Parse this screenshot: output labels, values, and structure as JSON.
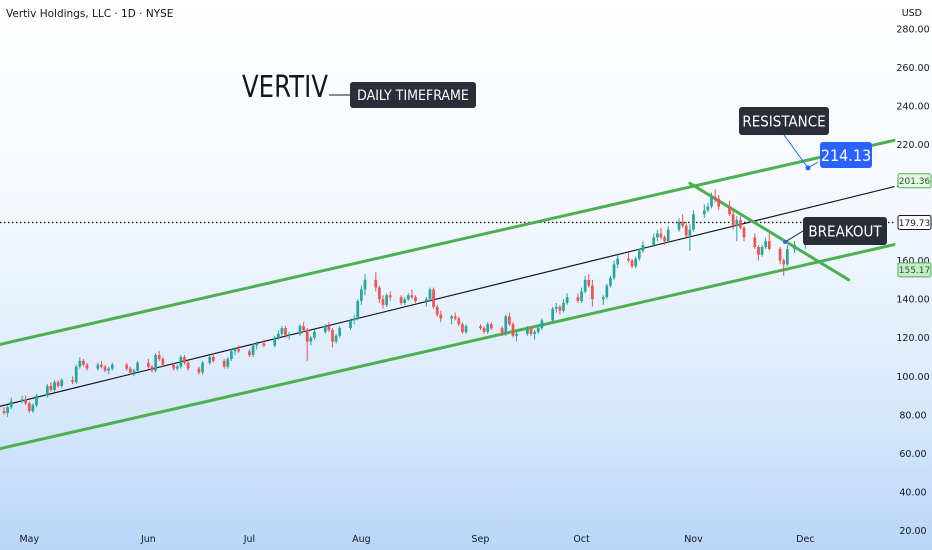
{
  "header": {
    "symbol_title": "Vertiv Holdings, LLC · 1D · NYSE",
    "currency": "USD"
  },
  "chart_data": {
    "type": "candlestick",
    "title": "Vertiv Holdings, LLC · 1D · NYSE",
    "ylim": [
      10,
      295
    ],
    "y_ticks": [
      20,
      40,
      60,
      80,
      100,
      120,
      140,
      160,
      180,
      200,
      220,
      240,
      260,
      280
    ],
    "x_ticks": [
      {
        "label": "May",
        "date": "2024-05-01"
      },
      {
        "label": "Jun",
        "date": "2024-06-03"
      },
      {
        "label": "Jul",
        "date": "2024-07-01"
      },
      {
        "label": "Aug",
        "date": "2024-08-01"
      },
      {
        "label": "Sep",
        "date": "2024-09-03"
      },
      {
        "label": "Oct",
        "date": "2024-10-01"
      },
      {
        "label": "Nov",
        "date": "2024-11-01"
      },
      {
        "label": "Dec",
        "date": "2024-12-02"
      }
    ],
    "x_range": [
      "2024-04-24",
      "2024-12-26"
    ],
    "price_tags": [
      {
        "value": 201.36,
        "label": "201.36",
        "style": "outline-green"
      },
      {
        "value": 179.73,
        "label": "179.73",
        "style": "dark"
      },
      {
        "value": 155.17,
        "label": "155.17",
        "style": "fill-green"
      }
    ],
    "current_price_line": 179.73,
    "colors": {
      "up": "#26a69a",
      "down": "#ef5350",
      "channel": "#4caf50",
      "trendline": "#131722",
      "label_bg": "#2a2e39",
      "target_bg": "#2962ff"
    },
    "trendlines": [
      {
        "name": "upper-channel",
        "color": "channel",
        "points": [
          [
            "2024-04-24",
            117
          ],
          [
            "2024-12-26",
            222
          ]
        ]
      },
      {
        "name": "lower-channel",
        "color": "channel",
        "points": [
          [
            "2024-04-24",
            63
          ],
          [
            "2024-12-26",
            168
          ]
        ]
      },
      {
        "name": "mid-trend",
        "color": "trendline",
        "points": [
          [
            "2024-04-24",
            85
          ],
          [
            "2024-12-26",
            198
          ]
        ]
      },
      {
        "name": "descending-resistance",
        "color": "channel",
        "points": [
          [
            "2024-10-31",
            200
          ],
          [
            "2024-12-14",
            150
          ]
        ]
      }
    ],
    "annotations": [
      {
        "text": "VERTIV",
        "style": "big"
      },
      {
        "text": "DAILY TIMEFRAME",
        "style": "box"
      },
      {
        "text": "RESISTANCE",
        "style": "box"
      },
      {
        "text": "214.13",
        "style": "target"
      },
      {
        "text": "BREAKOUT",
        "style": "box"
      }
    ],
    "candles": [
      [
        "2024-04-24",
        82,
        84,
        80,
        81
      ],
      [
        "2024-04-25",
        81,
        85,
        79,
        84
      ],
      [
        "2024-04-26",
        84,
        89,
        83,
        87
      ],
      [
        "2024-04-29",
        87,
        90,
        86,
        88
      ],
      [
        "2024-04-30",
        88,
        90,
        85,
        86
      ],
      [
        "2024-05-01",
        86,
        87,
        81,
        82
      ],
      [
        "2024-05-02",
        82,
        86,
        81,
        85
      ],
      [
        "2024-05-03",
        85,
        91,
        84,
        90
      ],
      [
        "2024-05-06",
        90,
        96,
        89,
        95
      ],
      [
        "2024-05-07",
        95,
        97,
        92,
        93
      ],
      [
        "2024-05-08",
        93,
        98,
        92,
        97
      ],
      [
        "2024-05-09",
        97,
        98,
        94,
        95
      ],
      [
        "2024-05-10",
        95,
        99,
        94,
        98
      ],
      [
        "2024-05-13",
        98,
        100,
        96,
        97
      ],
      [
        "2024-05-14",
        97,
        106,
        96,
        105
      ],
      [
        "2024-05-15",
        105,
        110,
        104,
        108
      ],
      [
        "2024-05-16",
        108,
        109,
        105,
        106
      ],
      [
        "2024-05-17",
        106,
        107,
        103,
        104
      ],
      [
        "2024-05-20",
        104,
        107,
        103,
        106
      ],
      [
        "2024-05-21",
        106,
        108,
        104,
        105
      ],
      [
        "2024-05-22",
        105,
        106,
        102,
        103
      ],
      [
        "2024-05-23",
        103,
        105,
        101,
        104
      ],
      [
        "2024-05-24",
        104,
        107,
        103,
        106
      ],
      [
        "2024-05-28",
        106,
        107,
        103,
        104
      ],
      [
        "2024-05-29",
        104,
        105,
        101,
        102
      ],
      [
        "2024-05-30",
        102,
        104,
        100,
        103
      ],
      [
        "2024-05-31",
        103,
        108,
        102,
        107
      ],
      [
        "2024-06-03",
        107,
        109,
        104,
        105
      ],
      [
        "2024-06-04",
        105,
        106,
        102,
        103
      ],
      [
        "2024-06-05",
        103,
        112,
        102,
        111
      ],
      [
        "2024-06-06",
        111,
        113,
        108,
        109
      ],
      [
        "2024-06-07",
        109,
        110,
        105,
        106
      ],
      [
        "2024-06-10",
        106,
        107,
        103,
        104
      ],
      [
        "2024-06-11",
        104,
        106,
        103,
        105
      ],
      [
        "2024-06-12",
        105,
        111,
        104,
        110
      ],
      [
        "2024-06-13",
        110,
        111,
        106,
        107
      ],
      [
        "2024-06-14",
        107,
        108,
        103,
        104
      ],
      [
        "2024-06-17",
        104,
        105,
        101,
        102
      ],
      [
        "2024-06-18",
        102,
        108,
        101,
        107
      ],
      [
        "2024-06-20",
        107,
        111,
        106,
        110
      ],
      [
        "2024-06-21",
        110,
        112,
        107,
        108
      ],
      [
        "2024-06-24",
        108,
        109,
        104,
        105
      ],
      [
        "2024-06-25",
        105,
        110,
        104,
        109
      ],
      [
        "2024-06-26",
        109,
        114,
        108,
        113
      ],
      [
        "2024-06-27",
        113,
        115,
        111,
        114
      ],
      [
        "2024-06-28",
        114,
        116,
        112,
        113
      ],
      [
        "2024-07-01",
        113,
        114,
        110,
        111
      ],
      [
        "2024-07-02",
        111,
        117,
        110,
        116
      ],
      [
        "2024-07-03",
        116,
        118,
        114,
        117
      ],
      [
        "2024-07-05",
        117,
        119,
        115,
        116
      ],
      [
        "2024-07-08",
        116,
        121,
        115,
        120
      ],
      [
        "2024-07-09",
        120,
        124,
        119,
        122
      ],
      [
        "2024-07-10",
        122,
        126,
        121,
        125
      ],
      [
        "2024-07-11",
        125,
        126,
        120,
        121
      ],
      [
        "2024-07-12",
        121,
        123,
        119,
        122
      ],
      [
        "2024-07-15",
        122,
        127,
        121,
        126
      ],
      [
        "2024-07-16",
        126,
        128,
        123,
        124
      ],
      [
        "2024-07-17",
        124,
        125,
        108,
        118
      ],
      [
        "2024-07-18",
        118,
        121,
        116,
        120
      ],
      [
        "2024-07-19",
        120,
        124,
        119,
        123
      ],
      [
        "2024-07-22",
        123,
        127,
        122,
        126
      ],
      [
        "2024-07-23",
        126,
        128,
        123,
        124
      ],
      [
        "2024-07-24",
        124,
        125,
        115,
        118
      ],
      [
        "2024-07-25",
        118,
        122,
        117,
        121
      ],
      [
        "2024-07-26",
        121,
        126,
        120,
        125
      ],
      [
        "2024-07-29",
        125,
        130,
        124,
        129
      ],
      [
        "2024-07-30",
        129,
        132,
        127,
        130
      ],
      [
        "2024-07-31",
        130,
        140,
        129,
        139
      ],
      [
        "2024-08-01",
        139,
        147,
        137,
        145
      ],
      [
        "2024-08-02",
        145,
        153,
        142,
        150
      ],
      [
        "2024-08-05",
        150,
        154,
        144,
        146
      ],
      [
        "2024-08-06",
        146,
        147,
        138,
        140
      ],
      [
        "2024-08-07",
        140,
        142,
        135,
        137
      ],
      [
        "2024-08-08",
        137,
        143,
        136,
        142
      ],
      [
        "2024-08-09",
        142,
        144,
        139,
        141
      ],
      [
        "2024-08-12",
        141,
        142,
        137,
        138
      ],
      [
        "2024-08-13",
        138,
        141,
        137,
        140
      ],
      [
        "2024-08-14",
        140,
        143,
        139,
        142
      ],
      [
        "2024-08-15",
        142,
        145,
        140,
        141
      ],
      [
        "2024-08-16",
        141,
        142,
        138,
        139
      ],
      [
        "2024-08-19",
        139,
        141,
        136,
        140
      ],
      [
        "2024-08-20",
        140,
        146,
        139,
        145
      ],
      [
        "2024-08-21",
        145,
        146,
        135,
        136
      ],
      [
        "2024-08-22",
        136,
        137,
        131,
        132
      ],
      [
        "2024-08-23",
        132,
        134,
        128,
        130
      ],
      [
        "2024-08-26",
        130,
        132,
        127,
        131
      ],
      [
        "2024-08-27",
        131,
        133,
        129,
        130
      ],
      [
        "2024-08-28",
        130,
        131,
        126,
        127
      ],
      [
        "2024-08-29",
        127,
        128,
        122,
        123
      ],
      [
        "2024-08-30",
        123,
        127,
        122,
        126
      ],
      [
        "2024-09-03",
        126,
        127,
        124,
        125
      ],
      [
        "2024-09-04",
        125,
        126,
        122,
        123
      ],
      [
        "2024-09-05",
        123,
        128,
        122,
        127
      ],
      [
        "2024-09-06",
        127,
        128,
        124,
        125
      ],
      [
        "2024-09-09",
        125,
        126,
        121,
        122
      ],
      [
        "2024-09-10",
        122,
        132,
        121,
        131
      ],
      [
        "2024-09-11",
        131,
        133,
        126,
        127
      ],
      [
        "2024-09-12",
        127,
        128,
        120,
        121
      ],
      [
        "2024-09-13",
        121,
        123,
        118,
        122
      ],
      [
        "2024-09-16",
        122,
        126,
        121,
        125
      ],
      [
        "2024-09-17",
        125,
        126,
        121,
        122
      ],
      [
        "2024-09-18",
        122,
        124,
        119,
        123
      ],
      [
        "2024-09-19",
        123,
        126,
        122,
        125
      ],
      [
        "2024-09-20",
        125,
        130,
        124,
        129
      ],
      [
        "2024-09-23",
        129,
        136,
        128,
        135
      ],
      [
        "2024-09-24",
        135,
        138,
        133,
        136
      ],
      [
        "2024-09-25",
        136,
        137,
        132,
        134
      ],
      [
        "2024-09-26",
        134,
        140,
        133,
        138
      ],
      [
        "2024-09-27",
        138,
        143,
        137,
        141
      ],
      [
        "2024-09-30",
        141,
        143,
        138,
        139
      ],
      [
        "2024-10-01",
        139,
        146,
        138,
        144
      ],
      [
        "2024-10-02",
        144,
        152,
        143,
        150
      ],
      [
        "2024-10-03",
        150,
        153,
        146,
        147
      ],
      [
        "2024-10-04",
        147,
        150,
        136,
        140
      ],
      [
        "2024-10-07",
        140,
        142,
        137,
        141
      ],
      [
        "2024-10-08",
        141,
        148,
        140,
        147
      ],
      [
        "2024-10-09",
        147,
        152,
        146,
        151
      ],
      [
        "2024-10-10",
        151,
        160,
        150,
        158
      ],
      [
        "2024-10-11",
        158,
        163,
        156,
        161
      ],
      [
        "2024-10-14",
        161,
        164,
        159,
        160
      ],
      [
        "2024-10-15",
        160,
        161,
        156,
        157
      ],
      [
        "2024-10-16",
        157,
        162,
        156,
        161
      ],
      [
        "2024-10-17",
        161,
        166,
        160,
        165
      ],
      [
        "2024-10-18",
        165,
        170,
        164,
        168
      ],
      [
        "2024-10-21",
        168,
        174,
        167,
        172
      ],
      [
        "2024-10-22",
        172,
        176,
        170,
        174
      ],
      [
        "2024-10-23",
        174,
        177,
        171,
        172
      ],
      [
        "2024-10-24",
        172,
        173,
        168,
        170
      ],
      [
        "2024-10-25",
        170,
        178,
        169,
        176
      ],
      [
        "2024-10-28",
        176,
        182,
        175,
        180
      ],
      [
        "2024-10-29",
        180,
        184,
        177,
        178
      ],
      [
        "2024-10-30",
        178,
        180,
        172,
        173
      ],
      [
        "2024-10-31",
        173,
        179,
        165,
        176
      ],
      [
        "2024-11-01",
        176,
        186,
        175,
        184
      ],
      [
        "2024-11-04",
        184,
        189,
        182,
        186
      ],
      [
        "2024-11-05",
        186,
        190,
        185,
        188
      ],
      [
        "2024-11-06",
        188,
        195,
        187,
        193
      ],
      [
        "2024-11-07",
        193,
        197,
        190,
        192
      ],
      [
        "2024-11-08",
        192,
        194,
        186,
        188
      ],
      [
        "2024-11-11",
        188,
        191,
        183,
        184
      ],
      [
        "2024-11-12",
        184,
        186,
        176,
        178
      ],
      [
        "2024-11-13",
        178,
        183,
        170,
        181
      ],
      [
        "2024-11-14",
        181,
        183,
        176,
        177
      ],
      [
        "2024-11-15",
        177,
        178,
        170,
        172
      ],
      [
        "2024-11-18",
        172,
        174,
        166,
        167
      ],
      [
        "2024-11-19",
        167,
        168,
        160,
        163
      ],
      [
        "2024-11-20",
        163,
        168,
        162,
        167
      ],
      [
        "2024-11-21",
        167,
        172,
        166,
        170
      ],
      [
        "2024-11-22",
        170,
        174,
        165,
        166
      ],
      [
        "2024-11-25",
        166,
        167,
        158,
        160
      ],
      [
        "2024-11-26",
        160,
        161,
        152,
        158
      ],
      [
        "2024-11-27",
        158,
        168,
        157,
        166
      ],
      [
        "2024-11-29",
        166,
        170,
        164,
        168
      ],
      [
        "2024-12-02",
        168,
        173,
        166,
        172
      ],
      [
        "2024-12-03",
        172,
        176,
        170,
        174
      ],
      [
        "2024-12-04",
        174,
        181,
        173,
        180
      ]
    ]
  }
}
